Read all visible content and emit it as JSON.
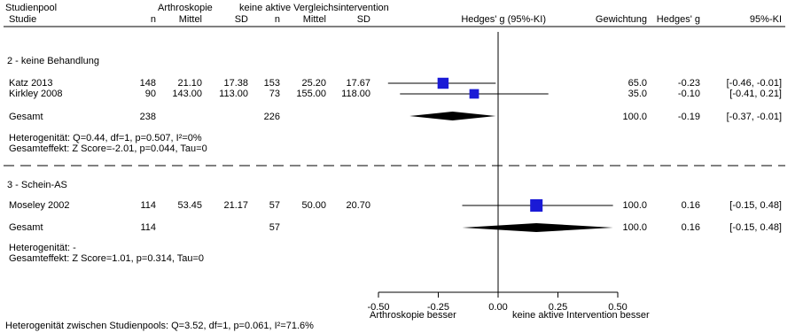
{
  "header": {
    "row1": {
      "pool": "Studienpool",
      "group_a": "Arthroskopie",
      "group_b": "keine aktive Vergleichsintervention"
    },
    "row2": {
      "study": "Studie",
      "n_a": "n",
      "mean_a": "Mittel",
      "sd_a": "SD",
      "n_b": "n",
      "mean_b": "Mittel",
      "sd_b": "SD",
      "effect": "Hedges' g (95%-KI)",
      "weight": "Gewichtung",
      "hedges": "Hedges' g",
      "ci": "95%-KI"
    }
  },
  "pools": [
    {
      "title": "2 - keine Behandlung",
      "studies": [
        {
          "name": "Katz 2013",
          "n_a": "148",
          "mean_a": "21.10",
          "sd_a": "17.38",
          "n_b": "153",
          "mean_b": "25.20",
          "sd_b": "17.67",
          "weight": "65.0",
          "g": "-0.23",
          "ci": "[-0.46, -0.01]"
        },
        {
          "name": "Kirkley 2008",
          "n_a": "90",
          "mean_a": "143.00",
          "sd_a": "113.00",
          "n_b": "73",
          "mean_b": "155.00",
          "sd_b": "118.00",
          "weight": "35.0",
          "g": "-0.10",
          "ci": "[-0.41, 0.21]"
        }
      ],
      "total": {
        "name": "Gesamt",
        "n_a": "238",
        "n_b": "226",
        "weight": "100.0",
        "g": "-0.19",
        "ci": "[-0.37, -0.01]"
      },
      "heterogeneity": "Heterogenität: Q=0.44, df=1, p=0.507, I²=0%",
      "overall_effect": "Gesamteffekt: Z Score=-2.01, p=0.044, Tau=0"
    },
    {
      "title": "3 - Schein-AS",
      "studies": [
        {
          "name": "Moseley 2002",
          "n_a": "114",
          "mean_a": "53.45",
          "sd_a": "21.17",
          "n_b": "57",
          "mean_b": "50.00",
          "sd_b": "20.70",
          "weight": "100.0",
          "g": "0.16",
          "ci": "[-0.15, 0.48]"
        }
      ],
      "total": {
        "name": "Gesamt",
        "n_a": "114",
        "n_b": "57",
        "weight": "100.0",
        "g": "0.16",
        "ci": "[-0.15, 0.48]"
      },
      "heterogeneity": "Heterogenität: -",
      "overall_effect": "Gesamteffekt: Z Score=1.01, p=0.314, Tau=0"
    }
  ],
  "footer": {
    "left_label": "Arthroskopie besser",
    "right_label": "keine aktive Intervention besser",
    "between": "Heterogenität zwischen Studienpools: Q=3.52, df=1, p=0.061, I²=71.6%"
  },
  "colors": {
    "point": "#1a1ad6",
    "diamond": "#000000",
    "line": "#000000"
  },
  "chart_data": {
    "type": "forest",
    "xlim": [
      -0.5,
      0.5
    ],
    "xticks": [
      -0.5,
      -0.25,
      0.0,
      0.25,
      0.5
    ],
    "xtick_labels": [
      "-0.50",
      "-0.25",
      "0.00",
      "0.25",
      "0.50"
    ],
    "reference_line": 0.0,
    "studies": [
      {
        "pool": "2 - keine Behandlung",
        "name": "Katz 2013",
        "g": -0.23,
        "lower": -0.46,
        "upper": -0.01,
        "weight": 65.0
      },
      {
        "pool": "2 - keine Behandlung",
        "name": "Kirkley 2008",
        "g": -0.1,
        "lower": -0.41,
        "upper": 0.21,
        "weight": 35.0
      },
      {
        "pool": "3 - Schein-AS",
        "name": "Moseley 2002",
        "g": 0.16,
        "lower": -0.15,
        "upper": 0.48,
        "weight": 100.0
      }
    ],
    "pooled": [
      {
        "pool": "2 - keine Behandlung",
        "g": -0.19,
        "lower": -0.37,
        "upper": -0.01
      },
      {
        "pool": "3 - Schein-AS",
        "g": 0.16,
        "lower": -0.15,
        "upper": 0.48
      }
    ]
  }
}
